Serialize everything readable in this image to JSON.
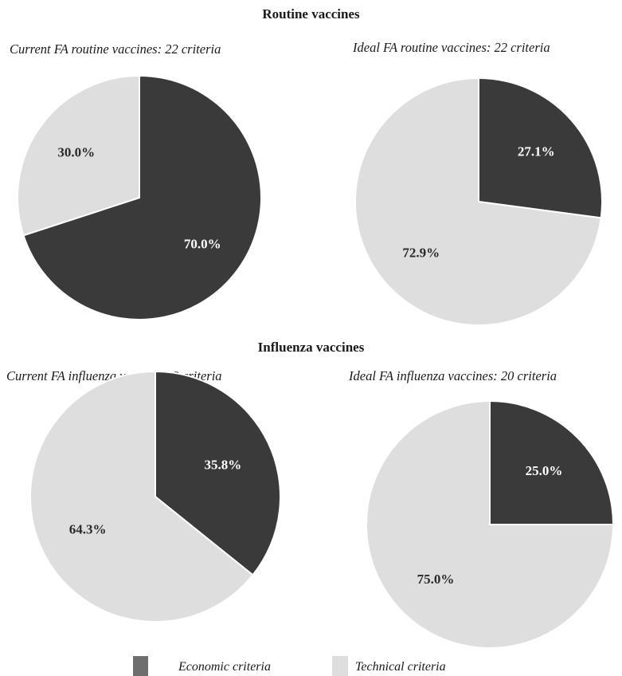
{
  "sections": {
    "routine": "Routine vaccines",
    "influenza": "Influenza vaccines"
  },
  "colors": {
    "economic": "#3a3a3a",
    "technical": "#dedede",
    "label_on_dark": "#ffffff",
    "label_on_light": "#2a2a2a",
    "legend_economic_swatch": "#6e6e6e"
  },
  "legend": {
    "economic": "Economic criteria",
    "technical": "Technical criteria"
  },
  "chart_data": [
    {
      "type": "pie",
      "title": "Current FA routine vaccines: 22 criteria",
      "slices": [
        {
          "name": "Economic criteria",
          "value": 70.0,
          "label": "70.0%"
        },
        {
          "name": "Technical criteria",
          "value": 30.0,
          "label": "30.0%"
        }
      ]
    },
    {
      "type": "pie",
      "title": "Ideal FA routine vaccines: 22 criteria",
      "slices": [
        {
          "name": "Economic criteria",
          "value": 27.1,
          "label": "27.1%"
        },
        {
          "name": "Technical criteria",
          "value": 72.9,
          "label": "72.9%"
        }
      ]
    },
    {
      "type": "pie",
      "title": "Current FA influenza vaccines: 9 criteria",
      "slices": [
        {
          "name": "Economic criteria",
          "value": 35.8,
          "label": "35.8%"
        },
        {
          "name": "Technical criteria",
          "value": 64.3,
          "label": "64.3%"
        }
      ]
    },
    {
      "type": "pie",
      "title": "Ideal FA influenza vaccines: 20 criteria",
      "slices": [
        {
          "name": "Economic criteria",
          "value": 25.0,
          "label": "25.0%"
        },
        {
          "name": "Technical criteria",
          "value": 75.0,
          "label": "75.0%"
        }
      ]
    }
  ]
}
